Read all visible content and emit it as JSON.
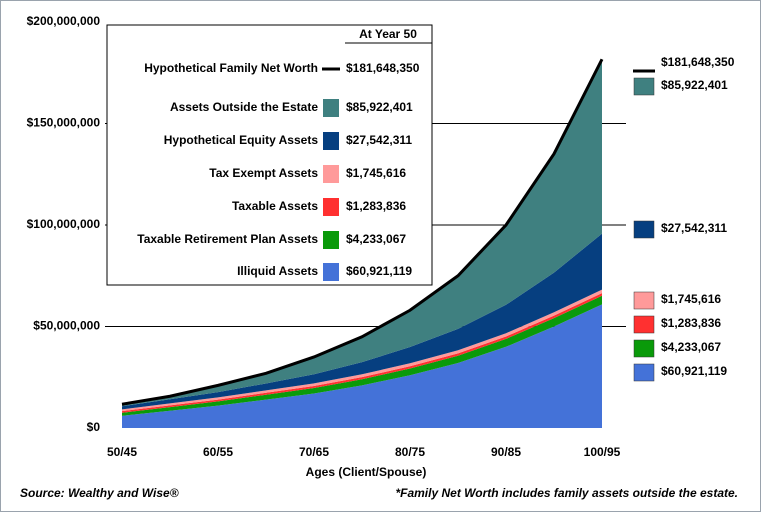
{
  "chart_data": {
    "type": "stacked-area",
    "x_label": "Ages (Client/Spouse)",
    "categories": [
      "50/45",
      null,
      "60/55",
      null,
      "70/65",
      null,
      "80/75",
      null,
      "90/85",
      null,
      "100/95"
    ],
    "ylim": [
      0,
      200000000
    ],
    "yticks": [
      {
        "value": 0,
        "label": "$0"
      },
      {
        "value": 50000000,
        "label": "$50,000,000"
      },
      {
        "value": 100000000,
        "label": "$100,000,000"
      },
      {
        "value": 150000000,
        "label": "$150,000,000"
      },
      {
        "value": 200000000,
        "label": "$200,000,000"
      }
    ],
    "grid": true,
    "legend_title": "At Year 50",
    "series": [
      {
        "name": "Hypothetical Family Net Worth",
        "type": "line",
        "color": "#000000",
        "values": [
          11700000,
          15650000,
          21000000,
          26950000,
          35000000,
          44950000,
          58000000,
          75000000,
          100000000,
          135050000,
          181648350
        ],
        "value_labels": [
          null,
          null,
          null,
          null,
          null,
          null,
          null,
          null,
          null,
          null,
          "$181,648,350"
        ]
      },
      {
        "name": "Assets Outside the Estate",
        "type": "area",
        "color": "#3f8080",
        "values": [
          1000000,
          1500000,
          3300000,
          5000000,
          8500000,
          12500000,
          18100000,
          26200000,
          39300000,
          58500000,
          85922401
        ],
        "value_labels": [
          null,
          null,
          null,
          null,
          null,
          null,
          null,
          null,
          null,
          null,
          "$85,922,401"
        ]
      },
      {
        "name": "Hypothetical Equity Assets",
        "type": "area",
        "color": "#063f80",
        "values": [
          1500000,
          2000000,
          2600000,
          3400000,
          4500000,
          6000000,
          8000000,
          10500000,
          14000000,
          19500000,
          27542311
        ],
        "value_labels": [
          null,
          null,
          null,
          null,
          null,
          null,
          null,
          null,
          null,
          null,
          "$27,542,311"
        ]
      },
      {
        "name": "Tax Exempt Assets",
        "type": "area",
        "color": "#ff9a9a",
        "values": [
          900000,
          1000000,
          1100000,
          1200000,
          1300000,
          1400000,
          1500000,
          1550000,
          1600000,
          1700000,
          1745616
        ],
        "value_labels": [
          null,
          null,
          null,
          null,
          null,
          null,
          null,
          null,
          null,
          null,
          "$1,745,616"
        ]
      },
      {
        "name": "Taxable Assets",
        "type": "area",
        "color": "#ff3030",
        "values": [
          800000,
          850000,
          900000,
          950000,
          1000000,
          1050000,
          1100000,
          1150000,
          1200000,
          1250000,
          1283836
        ],
        "value_labels": [
          null,
          null,
          null,
          null,
          null,
          null,
          null,
          null,
          null,
          null,
          "$1,283,836"
        ]
      },
      {
        "name": "Taxable Retirement Plan Assets",
        "type": "area",
        "color": "#0a9a0a",
        "values": [
          1500000,
          1800000,
          2100000,
          2400000,
          2700000,
          3000000,
          3300000,
          3600000,
          3900000,
          4100000,
          4233067
        ],
        "value_labels": [
          null,
          null,
          null,
          null,
          null,
          null,
          null,
          null,
          null,
          null,
          "$4,233,067"
        ]
      },
      {
        "name": "Illiquid Assets",
        "type": "area",
        "color": "#4472d8",
        "values": [
          6000000,
          8500000,
          11000000,
          14000000,
          17000000,
          21000000,
          26000000,
          32000000,
          40000000,
          50000000,
          60921119
        ],
        "value_labels": [
          null,
          null,
          null,
          null,
          null,
          null,
          null,
          null,
          null,
          null,
          "$60,921,119"
        ]
      }
    ],
    "source": "Source: Wealthy and Wise®",
    "footnote": "*Family Net Worth includes family assets outside the estate."
  }
}
